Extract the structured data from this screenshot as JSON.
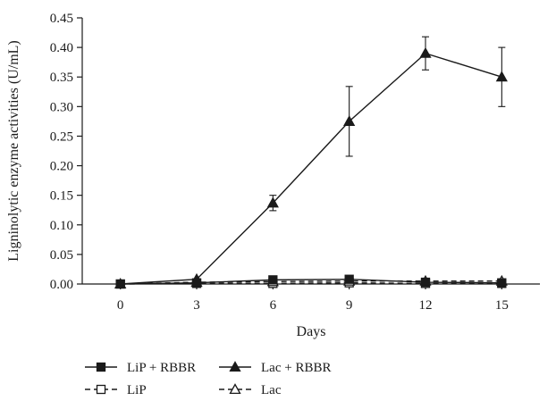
{
  "chart_data": {
    "type": "line",
    "title": "",
    "xlabel": "Days",
    "ylabel": "Ligninolytic enzyme activities (U/mL)",
    "x": [
      0,
      3,
      6,
      9,
      12,
      15
    ],
    "x_ticks": [
      "0",
      "3",
      "6",
      "9",
      "12",
      "15"
    ],
    "xlim": [
      -1.5,
      16.5
    ],
    "ylim": [
      0,
      0.45
    ],
    "y_ticks": [
      "0.00",
      "0.05",
      "0.10",
      "0.15",
      "0.20",
      "0.25",
      "0.30",
      "0.35",
      "0.40",
      "0.45"
    ],
    "grid": false,
    "legend_position": "bottom",
    "series": [
      {
        "name": "LiP + RBBR",
        "values": [
          0,
          0.002,
          0.007,
          0.008,
          0.003,
          0.002
        ],
        "marker": "filled-square",
        "line": "solid",
        "color": "#1a1a1a"
      },
      {
        "name": "Lac + RBBR",
        "values": [
          0,
          0.008,
          0.137,
          0.275,
          0.39,
          0.35
        ],
        "errors": [
          0,
          0,
          0.013,
          0.059,
          0.028,
          0.05
        ],
        "marker": "filled-triangle",
        "line": "solid",
        "color": "#1a1a1a"
      },
      {
        "name": "LiP",
        "values": [
          0,
          0.001,
          0.001,
          0.002,
          0.001,
          0.001
        ],
        "marker": "open-square",
        "line": "dashed",
        "color": "#1a1a1a"
      },
      {
        "name": "Lac",
        "values": [
          0,
          0.003,
          0.004,
          0.005,
          0.005,
          0.005
        ],
        "marker": "open-triangle",
        "line": "dashed",
        "color": "#1a1a1a"
      }
    ]
  }
}
